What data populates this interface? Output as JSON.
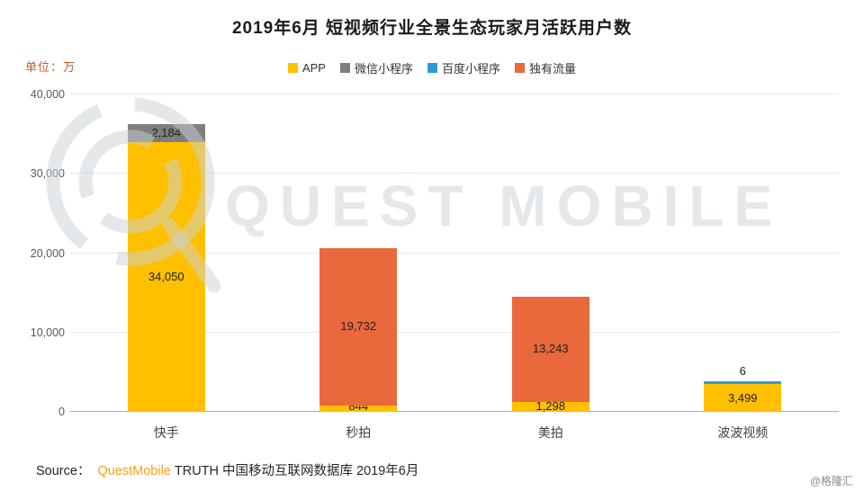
{
  "title": "2019年6月 短视频行业全景生态玩家月活跃用户数",
  "unit_label": "单位：万",
  "legend": [
    {
      "label": "APP",
      "color": "#ffc000"
    },
    {
      "label": "微信小程序",
      "color": "#7f7f7f"
    },
    {
      "label": "百度小程序",
      "color": "#2f9bd6"
    },
    {
      "label": "独有流量",
      "color": "#e9683c"
    }
  ],
  "watermark": "QUEST MOBILE",
  "source": {
    "prefix": "Source：",
    "brand": "QuestMobile",
    "suffix": "TRUTH 中国移动互联网数据库 2019年6月"
  },
  "badge": "@格隆汇",
  "chart_data": {
    "type": "bar",
    "stacked": true,
    "title": "2019年6月 短视频行业全景生态玩家月活跃用户数",
    "unit": "万",
    "categories": [
      "快手",
      "秒拍",
      "美拍",
      "波波视频"
    ],
    "series": [
      {
        "name": "APP",
        "color": "#ffc000",
        "values": [
          34050,
          844,
          1298,
          3499
        ]
      },
      {
        "name": "微信小程序",
        "color": "#7f7f7f",
        "values": [
          2184,
          0,
          0,
          0
        ]
      },
      {
        "name": "百度小程序",
        "color": "#2f9bd6",
        "values": [
          0,
          0,
          0,
          6
        ]
      },
      {
        "name": "独有流量",
        "color": "#e9683c",
        "values": [
          0,
          19732,
          13243,
          0
        ]
      }
    ],
    "ylim": [
      0,
      40000
    ],
    "yticks": [
      0,
      10000,
      20000,
      30000,
      40000
    ],
    "grid": true,
    "legend_position": "top"
  }
}
